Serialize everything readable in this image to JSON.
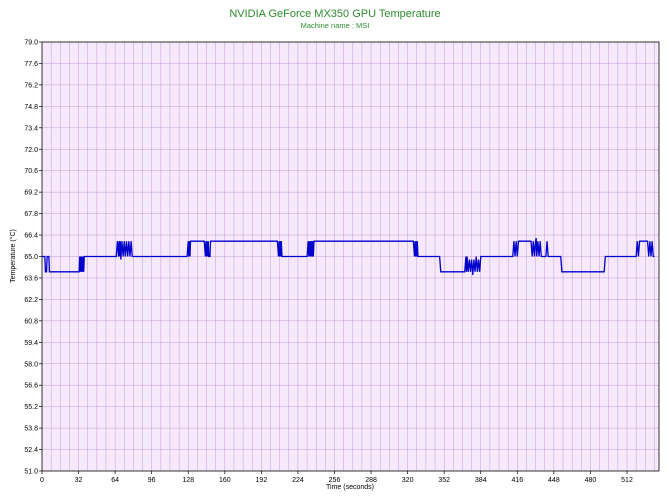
{
  "chart_data": {
    "type": "line",
    "title": "NVIDIA GeForce MX350 GPU Temperature",
    "subtitle": "Machine name : MSI",
    "xlabel": "Time (seconds)",
    "ylabel": "Temperature (°C)",
    "xlim": [
      0,
      540
    ],
    "ylim": [
      51.0,
      79.0
    ],
    "x_ticks": [
      "0",
      "32",
      "64",
      "96",
      "128",
      "160",
      "192",
      "224",
      "256",
      "288",
      "320",
      "352",
      "384",
      "416",
      "448",
      "480",
      "512"
    ],
    "y_ticks": [
      "51.0",
      "52.4",
      "53.8",
      "55.2",
      "56.6",
      "58.0",
      "59.4",
      "60.8",
      "62.2",
      "63.6",
      "65.0",
      "66.4",
      "67.8",
      "69.2",
      "70.6",
      "72.0",
      "73.4",
      "74.8",
      "76.2",
      "77.6",
      "79.0"
    ],
    "grid": true,
    "colors": {
      "title": "#2e8b2e",
      "plot_background": "#f6e9fb",
      "grid": "#c49ad6",
      "line": "#0000cc"
    },
    "series": [
      {
        "values": [
          [
            0,
            65.0
          ],
          [
            2,
            65.0
          ],
          [
            2.5,
            65.0
          ],
          [
            3,
            64.0
          ],
          [
            4,
            64.0
          ],
          [
            4.5,
            65.0
          ],
          [
            6,
            65.0
          ],
          [
            6.5,
            64.0
          ],
          [
            32,
            64.0
          ],
          [
            32.5,
            64.0
          ],
          [
            33,
            65.0
          ],
          [
            33.5,
            64.0
          ],
          [
            34,
            65.0
          ],
          [
            34.5,
            64.0
          ],
          [
            35,
            65.0
          ],
          [
            35.5,
            64.0
          ],
          [
            36,
            65.0
          ],
          [
            36.5,
            64.0
          ],
          [
            37,
            65.0
          ],
          [
            64,
            65.0
          ],
          [
            65,
            65.0
          ],
          [
            66,
            66.0
          ],
          [
            67,
            65.0
          ],
          [
            67.5,
            66.0
          ],
          [
            68,
            65.0
          ],
          [
            68.5,
            66.0
          ],
          [
            69,
            64.8
          ],
          [
            70,
            66.0
          ],
          [
            71,
            65.0
          ],
          [
            72,
            66.0
          ],
          [
            73,
            65.0
          ],
          [
            74,
            66.0
          ],
          [
            75,
            65.0
          ],
          [
            76,
            66.0
          ],
          [
            77,
            65.0
          ],
          [
            78,
            66.0
          ],
          [
            79,
            65.0
          ],
          [
            80,
            65.0
          ],
          [
            127,
            65.0
          ],
          [
            128,
            66.0
          ],
          [
            128.5,
            65.0
          ],
          [
            129,
            66.0
          ],
          [
            129.5,
            65.0
          ],
          [
            130,
            66.0
          ],
          [
            142,
            66.0
          ],
          [
            143,
            65.0
          ],
          [
            143.5,
            66.0
          ],
          [
            144,
            65.0
          ],
          [
            144.5,
            66.0
          ],
          [
            145,
            65.0
          ],
          [
            145.5,
            66.0
          ],
          [
            146,
            65.0
          ],
          [
            147,
            65.0
          ],
          [
            147.5,
            66.0
          ],
          [
            148,
            66.0
          ],
          [
            206,
            66.0
          ],
          [
            207,
            65.0
          ],
          [
            207.5,
            66.0
          ],
          [
            208,
            65.0
          ],
          [
            208.5,
            66.0
          ],
          [
            209,
            65.0
          ],
          [
            209.5,
            66.0
          ],
          [
            210,
            65.0
          ],
          [
            232,
            65.0
          ],
          [
            233,
            66.0
          ],
          [
            233.5,
            65.0
          ],
          [
            234,
            66.0
          ],
          [
            234.5,
            65.0
          ],
          [
            235,
            66.0
          ],
          [
            235.5,
            65.0
          ],
          [
            236,
            66.0
          ],
          [
            236.5,
            65.0
          ],
          [
            237,
            66.0
          ],
          [
            237.5,
            65.0
          ],
          [
            238,
            66.0
          ],
          [
            325,
            66.0
          ],
          [
            326,
            65.0
          ],
          [
            326.5,
            66.0
          ],
          [
            327,
            65.0
          ],
          [
            327.5,
            66.0
          ],
          [
            328,
            65.0
          ],
          [
            328.5,
            66.0
          ],
          [
            329,
            65.0
          ],
          [
            348,
            65.0
          ],
          [
            349,
            64.0
          ],
          [
            370,
            64.0
          ],
          [
            371,
            65.0
          ],
          [
            371.5,
            64.0
          ],
          [
            372,
            65.0
          ],
          [
            373,
            64.0
          ],
          [
            374,
            64.8
          ],
          [
            375,
            64.0
          ],
          [
            376,
            64.8
          ],
          [
            377,
            63.8
          ],
          [
            378,
            64.8
          ],
          [
            379,
            64.0
          ],
          [
            380,
            65.0
          ],
          [
            381,
            64.0
          ],
          [
            382,
            64.8
          ],
          [
            383,
            64.0
          ],
          [
            384,
            65.0
          ],
          [
            412,
            65.0
          ],
          [
            413,
            66.0
          ],
          [
            414,
            65.0
          ],
          [
            415,
            66.0
          ],
          [
            416,
            65.0
          ],
          [
            417,
            66.0
          ],
          [
            428,
            66.0
          ],
          [
            429,
            65.0
          ],
          [
            430,
            66.0
          ],
          [
            431,
            65.0
          ],
          [
            432,
            66.0
          ],
          [
            432.5,
            66.2
          ],
          [
            433,
            65.0
          ],
          [
            434,
            66.0
          ],
          [
            435,
            65.0
          ],
          [
            436,
            66.0
          ],
          [
            437,
            65.0
          ],
          [
            438,
            65.0
          ],
          [
            441,
            65.0
          ],
          [
            442,
            66.0
          ],
          [
            443,
            65.0
          ],
          [
            444,
            65.0
          ],
          [
            454,
            65.0
          ],
          [
            455,
            64.0
          ],
          [
            492,
            64.0
          ],
          [
            493,
            65.0
          ],
          [
            520,
            65.0
          ],
          [
            521,
            66.0
          ],
          [
            522,
            65.0
          ],
          [
            523,
            66.0
          ],
          [
            530,
            66.0
          ],
          [
            531,
            65.0
          ],
          [
            532,
            66.0
          ],
          [
            533,
            65.0
          ],
          [
            534,
            66.0
          ],
          [
            535,
            65.0
          ],
          [
            536,
            65.0
          ]
        ]
      }
    ]
  }
}
